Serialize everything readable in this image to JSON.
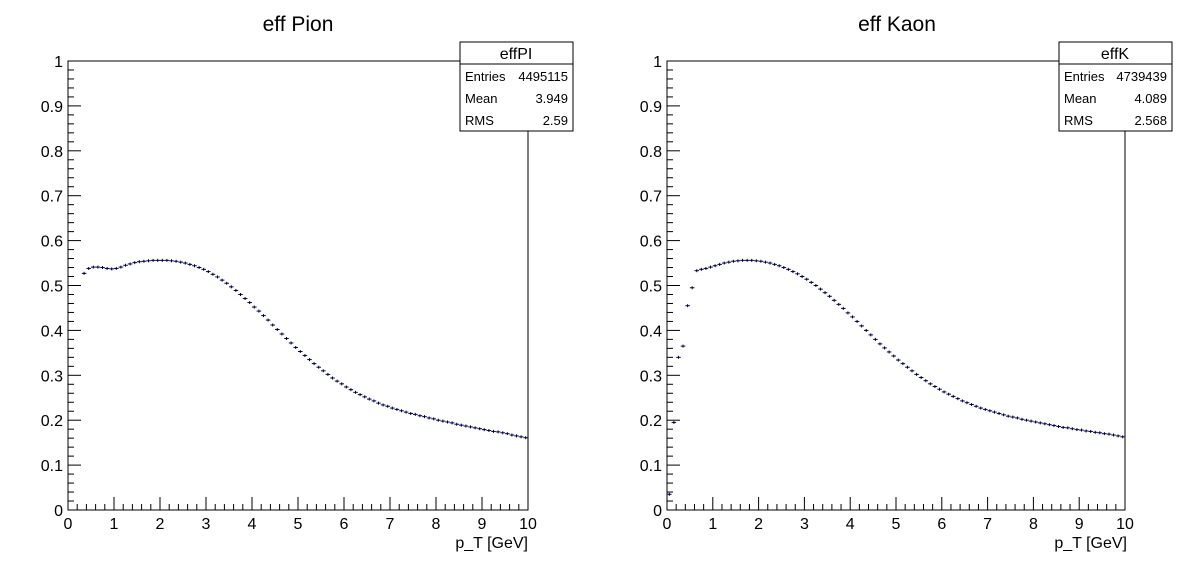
{
  "chart_data": [
    {
      "type": "histogram",
      "title": "eff Pion",
      "xlabel": "p_T [GeV]",
      "ylabel": "",
      "xlim": [
        0,
        10
      ],
      "ylim": [
        0,
        1
      ],
      "x_ticks": [
        "0",
        "1",
        "2",
        "3",
        "4",
        "5",
        "6",
        "7",
        "8",
        "9",
        "10"
      ],
      "y_ticks": [
        "0",
        "0.1",
        "0.2",
        "0.3",
        "0.4",
        "0.5",
        "0.6",
        "0.7",
        "0.8",
        "0.9",
        "1"
      ],
      "stats": {
        "name": "effPI",
        "rows": [
          {
            "label": "Entries",
            "value": "4495115"
          },
          {
            "label": "Mean",
            "value": "3.949"
          },
          {
            "label": "RMS",
            "value": "2.59"
          }
        ]
      },
      "color": "#00007f",
      "series": [
        {
          "x": [
            0.3,
            0.4,
            0.5,
            0.6,
            0.7,
            0.8,
            0.9,
            1.0,
            1.1,
            1.2,
            1.3,
            1.4,
            1.5,
            1.6,
            1.7,
            1.8,
            1.9,
            2.0,
            2.1,
            2.2,
            2.3,
            2.4,
            2.5,
            2.6,
            2.7,
            2.8,
            2.9,
            3.0,
            3.1,
            3.2,
            3.3,
            3.4,
            3.5,
            3.6,
            3.7,
            3.8,
            3.9,
            4.0,
            4.1,
            4.2,
            4.3,
            4.4,
            4.5,
            4.6,
            4.7,
            4.8,
            4.9,
            5.0,
            5.1,
            5.2,
            5.3,
            5.4,
            5.5,
            5.6,
            5.7,
            5.8,
            5.9,
            6.0,
            6.1,
            6.2,
            6.3,
            6.4,
            6.5,
            6.6,
            6.7,
            6.8,
            6.9,
            7.0,
            7.1,
            7.2,
            7.3,
            7.4,
            7.5,
            7.6,
            7.7,
            7.8,
            7.9,
            8.0,
            8.1,
            8.2,
            8.3,
            8.4,
            8.5,
            8.6,
            8.7,
            8.8,
            8.9,
            9.0,
            9.1,
            9.2,
            9.3,
            9.4,
            9.5,
            9.6,
            9.7,
            9.8,
            9.9
          ],
          "y": [
            0.527,
            0.538,
            0.541,
            0.541,
            0.54,
            0.538,
            0.537,
            0.538,
            0.541,
            0.545,
            0.548,
            0.551,
            0.553,
            0.554,
            0.555,
            0.556,
            0.556,
            0.556,
            0.556,
            0.555,
            0.554,
            0.552,
            0.55,
            0.547,
            0.544,
            0.54,
            0.536,
            0.531,
            0.525,
            0.519,
            0.512,
            0.505,
            0.497,
            0.489,
            0.48,
            0.471,
            0.462,
            0.452,
            0.443,
            0.433,
            0.423,
            0.412,
            0.402,
            0.392,
            0.382,
            0.372,
            0.362,
            0.353,
            0.344,
            0.335,
            0.326,
            0.318,
            0.31,
            0.302,
            0.294,
            0.287,
            0.281,
            0.274,
            0.268,
            0.262,
            0.257,
            0.252,
            0.247,
            0.243,
            0.238,
            0.234,
            0.231,
            0.227,
            0.224,
            0.221,
            0.218,
            0.215,
            0.213,
            0.21,
            0.208,
            0.205,
            0.203,
            0.2,
            0.198,
            0.196,
            0.194,
            0.191,
            0.189,
            0.187,
            0.185,
            0.183,
            0.181,
            0.179,
            0.177,
            0.175,
            0.174,
            0.172,
            0.17,
            0.167,
            0.165,
            0.163,
            0.161
          ]
        }
      ]
    },
    {
      "type": "histogram",
      "title": "eff Kaon",
      "xlabel": "p_T [GeV]",
      "ylabel": "",
      "xlim": [
        0,
        10
      ],
      "ylim": [
        0,
        1
      ],
      "x_ticks": [
        "0",
        "1",
        "2",
        "3",
        "4",
        "5",
        "6",
        "7",
        "8",
        "9",
        "10"
      ],
      "y_ticks": [
        "0",
        "0.1",
        "0.2",
        "0.3",
        "0.4",
        "0.5",
        "0.6",
        "0.7",
        "0.8",
        "0.9",
        "1"
      ],
      "stats": {
        "name": "effK",
        "rows": [
          {
            "label": "Entries",
            "value": "4739439"
          },
          {
            "label": "Mean",
            "value": "4.089"
          },
          {
            "label": "RMS",
            "value": "2.568"
          }
        ]
      },
      "color": "#00007f",
      "series": [
        {
          "x": [
            0.0,
            0.1,
            0.2,
            0.3,
            0.4,
            0.5,
            0.6,
            0.7,
            0.8,
            0.9,
            1.0,
            1.1,
            1.2,
            1.3,
            1.4,
            1.5,
            1.6,
            1.7,
            1.8,
            1.9,
            2.0,
            2.1,
            2.2,
            2.3,
            2.4,
            2.5,
            2.6,
            2.7,
            2.8,
            2.9,
            3.0,
            3.1,
            3.2,
            3.3,
            3.4,
            3.5,
            3.6,
            3.7,
            3.8,
            3.9,
            4.0,
            4.1,
            4.2,
            4.3,
            4.4,
            4.5,
            4.6,
            4.7,
            4.8,
            4.9,
            5.0,
            5.1,
            5.2,
            5.3,
            5.4,
            5.5,
            5.6,
            5.7,
            5.8,
            5.9,
            6.0,
            6.1,
            6.2,
            6.3,
            6.4,
            6.5,
            6.6,
            6.7,
            6.8,
            6.9,
            7.0,
            7.1,
            7.2,
            7.3,
            7.4,
            7.5,
            7.6,
            7.7,
            7.8,
            7.9,
            8.0,
            8.1,
            8.2,
            8.3,
            8.4,
            8.5,
            8.6,
            8.7,
            8.8,
            8.9,
            9.0,
            9.1,
            9.2,
            9.3,
            9.4,
            9.5,
            9.6,
            9.7,
            9.8,
            9.9
          ],
          "y": [
            0.035,
            0.195,
            0.34,
            0.365,
            0.455,
            0.495,
            0.533,
            0.536,
            0.538,
            0.541,
            0.544,
            0.547,
            0.55,
            0.552,
            0.554,
            0.555,
            0.556,
            0.556,
            0.556,
            0.555,
            0.554,
            0.552,
            0.55,
            0.547,
            0.544,
            0.54,
            0.536,
            0.531,
            0.526,
            0.52,
            0.514,
            0.507,
            0.5,
            0.492,
            0.484,
            0.476,
            0.467,
            0.458,
            0.449,
            0.439,
            0.43,
            0.42,
            0.41,
            0.4,
            0.39,
            0.38,
            0.37,
            0.361,
            0.352,
            0.343,
            0.334,
            0.326,
            0.318,
            0.31,
            0.302,
            0.295,
            0.288,
            0.281,
            0.275,
            0.269,
            0.263,
            0.258,
            0.253,
            0.248,
            0.243,
            0.239,
            0.235,
            0.231,
            0.227,
            0.224,
            0.221,
            0.218,
            0.215,
            0.212,
            0.209,
            0.207,
            0.205,
            0.202,
            0.2,
            0.198,
            0.196,
            0.194,
            0.192,
            0.19,
            0.188,
            0.186,
            0.184,
            0.183,
            0.181,
            0.179,
            0.178,
            0.176,
            0.175,
            0.173,
            0.172,
            0.17,
            0.169,
            0.167,
            0.165,
            0.163
          ]
        }
      ]
    }
  ]
}
